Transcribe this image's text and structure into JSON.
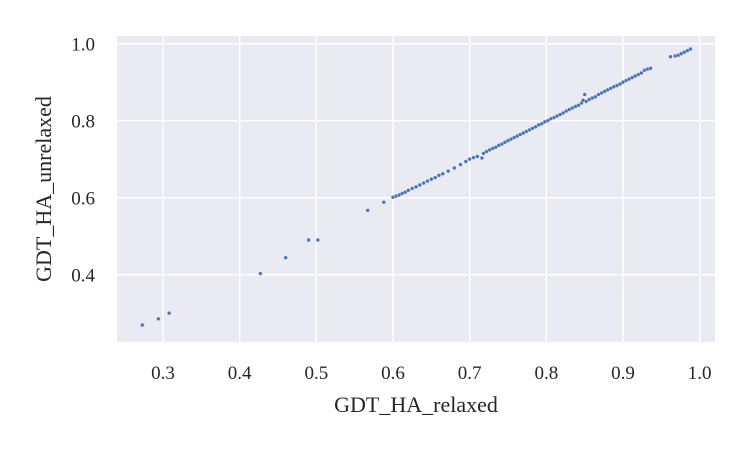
{
  "chart_data": {
    "type": "scatter",
    "title": "",
    "xlabel": "GDT_HA_relaxed",
    "ylabel": "GDT_HA_unrelaxed",
    "xlim": [
      0.24,
      1.02
    ],
    "ylim": [
      0.225,
      1.02
    ],
    "xticks": [
      0.3,
      0.4,
      0.5,
      0.6,
      0.7,
      0.8,
      0.9,
      1.0
    ],
    "xtick_labels": [
      "0.3",
      "0.4",
      "0.5",
      "0.6",
      "0.7",
      "0.8",
      "0.9",
      "1.0"
    ],
    "yticks": [
      0.4,
      0.6,
      0.8,
      1.0
    ],
    "ytick_labels": [
      "0.4",
      "0.6",
      "0.8",
      "1.0"
    ],
    "grid": true,
    "background_color": "#eaeaf2",
    "grid_color": "#ffffff",
    "point_color": "#4c72b0",
    "points": [
      [
        0.273,
        0.269
      ],
      [
        0.294,
        0.285
      ],
      [
        0.308,
        0.3
      ],
      [
        0.427,
        0.403
      ],
      [
        0.46,
        0.444
      ],
      [
        0.49,
        0.49
      ],
      [
        0.502,
        0.49
      ],
      [
        0.567,
        0.567
      ],
      [
        0.588,
        0.588
      ],
      [
        0.6,
        0.601
      ],
      [
        0.604,
        0.604
      ],
      [
        0.608,
        0.607
      ],
      [
        0.612,
        0.611
      ],
      [
        0.616,
        0.614
      ],
      [
        0.62,
        0.619
      ],
      [
        0.625,
        0.624
      ],
      [
        0.63,
        0.628
      ],
      [
        0.635,
        0.633
      ],
      [
        0.64,
        0.638
      ],
      [
        0.645,
        0.643
      ],
      [
        0.65,
        0.648
      ],
      [
        0.655,
        0.652
      ],
      [
        0.66,
        0.658
      ],
      [
        0.665,
        0.662
      ],
      [
        0.672,
        0.669
      ],
      [
        0.68,
        0.677
      ],
      [
        0.688,
        0.686
      ],
      [
        0.695,
        0.694
      ],
      [
        0.7,
        0.7
      ],
      [
        0.705,
        0.704
      ],
      [
        0.71,
        0.707
      ],
      [
        0.716,
        0.703
      ],
      [
        0.718,
        0.715
      ],
      [
        0.722,
        0.72
      ],
      [
        0.726,
        0.724
      ],
      [
        0.73,
        0.728
      ],
      [
        0.734,
        0.731
      ],
      [
        0.738,
        0.736
      ],
      [
        0.742,
        0.739
      ],
      [
        0.746,
        0.744
      ],
      [
        0.75,
        0.748
      ],
      [
        0.754,
        0.752
      ],
      [
        0.758,
        0.756
      ],
      [
        0.762,
        0.76
      ],
      [
        0.766,
        0.764
      ],
      [
        0.77,
        0.768
      ],
      [
        0.774,
        0.772
      ],
      [
        0.778,
        0.776
      ],
      [
        0.782,
        0.78
      ],
      [
        0.786,
        0.784
      ],
      [
        0.79,
        0.789
      ],
      [
        0.794,
        0.792
      ],
      [
        0.798,
        0.797
      ],
      [
        0.802,
        0.8
      ],
      [
        0.806,
        0.805
      ],
      [
        0.81,
        0.808
      ],
      [
        0.814,
        0.812
      ],
      [
        0.818,
        0.816
      ],
      [
        0.822,
        0.82
      ],
      [
        0.826,
        0.825
      ],
      [
        0.83,
        0.829
      ],
      [
        0.834,
        0.833
      ],
      [
        0.838,
        0.837
      ],
      [
        0.842,
        0.84
      ],
      [
        0.846,
        0.846
      ],
      [
        0.848,
        0.853
      ],
      [
        0.85,
        0.868
      ],
      [
        0.852,
        0.85
      ],
      [
        0.856,
        0.855
      ],
      [
        0.86,
        0.859
      ],
      [
        0.864,
        0.862
      ],
      [
        0.868,
        0.868
      ],
      [
        0.872,
        0.872
      ],
      [
        0.876,
        0.876
      ],
      [
        0.88,
        0.88
      ],
      [
        0.884,
        0.884
      ],
      [
        0.888,
        0.888
      ],
      [
        0.892,
        0.891
      ],
      [
        0.896,
        0.895
      ],
      [
        0.9,
        0.9
      ],
      [
        0.904,
        0.904
      ],
      [
        0.908,
        0.908
      ],
      [
        0.912,
        0.912
      ],
      [
        0.916,
        0.916
      ],
      [
        0.92,
        0.92
      ],
      [
        0.924,
        0.924
      ],
      [
        0.928,
        0.931
      ],
      [
        0.932,
        0.934
      ],
      [
        0.936,
        0.936
      ],
      [
        0.962,
        0.966
      ],
      [
        0.968,
        0.968
      ],
      [
        0.972,
        0.97
      ],
      [
        0.976,
        0.974
      ],
      [
        0.98,
        0.978
      ],
      [
        0.984,
        0.982
      ],
      [
        0.988,
        0.986
      ]
    ]
  }
}
